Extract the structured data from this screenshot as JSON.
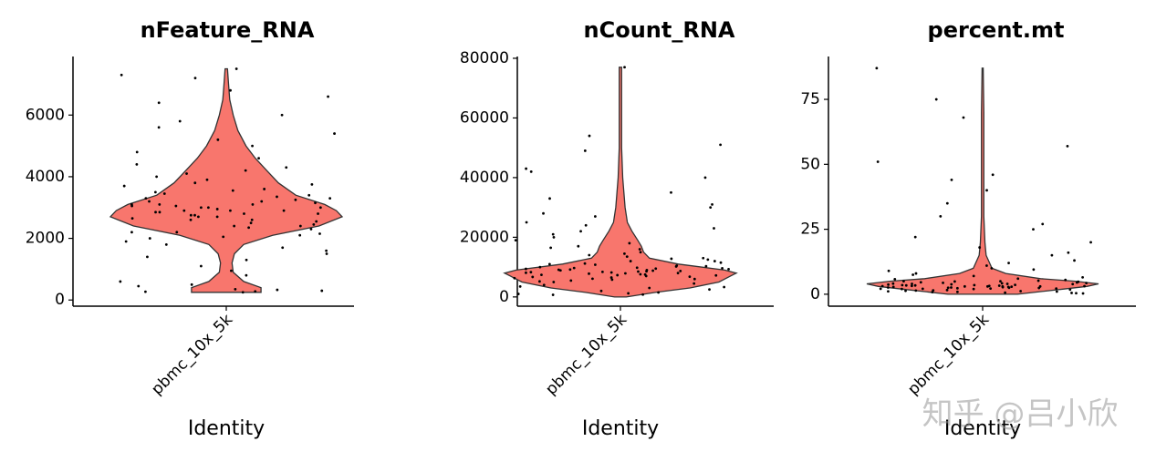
{
  "chart_data": [
    {
      "type": "violin",
      "title": "nFeature_RNA",
      "x_label": "Identity",
      "categories": [
        "pbmc_10x_5k"
      ],
      "color": "#f8766d",
      "ylim": [
        -200,
        7900
      ],
      "yticks": [
        0,
        2000,
        4000,
        6000
      ],
      "violin": {
        "y": [
          250,
          400,
          600,
          900,
          1200,
          1500,
          1800,
          2100,
          2400,
          2700,
          2900,
          3100,
          3400,
          3800,
          4200,
          4600,
          5000,
          5500,
          6000,
          6500,
          7000,
          7500
        ],
        "width": [
          0.3,
          0.3,
          0.15,
          0.06,
          0.05,
          0.07,
          0.15,
          0.4,
          0.8,
          1.0,
          0.95,
          0.85,
          0.6,
          0.45,
          0.35,
          0.25,
          0.17,
          0.1,
          0.06,
          0.03,
          0.02,
          0.01
        ]
      },
      "values": [
        2900,
        3100,
        2500,
        3300,
        2700,
        2800,
        3500,
        2200,
        3000,
        2600,
        3200,
        2400,
        3800,
        2100,
        2950,
        3050,
        4200,
        1900,
        2750,
        3400,
        2850,
        3150,
        4600,
        1700,
        2650,
        3600,
        300,
        250,
        350,
        280,
        5000,
        1500,
        2550,
        3700,
        3250,
        2450,
        4100,
        2000,
        5400,
        1300,
        3350,
        2350,
        6000,
        800,
        2900,
        3100,
        4400,
        1100,
        2300,
        3900,
        5800,
        600,
        7300,
        7500,
        6800,
        7200,
        2750,
        3050,
        4800,
        1600,
        2200,
        3450,
        3550,
        2050,
        500,
        450,
        3000,
        2800,
        5200,
        1800,
        4000,
        3300,
        2600,
        6400,
        950,
        3100,
        2900,
        2700,
        3200,
        4300,
        5600,
        2400,
        3750,
        2150,
        1400,
        6600,
        330,
        270,
        2850,
        3000
      ]
    },
    {
      "type": "violin",
      "title": "nCount_RNA",
      "x_label": "Identity",
      "categories": [
        "pbmc_10x_5k"
      ],
      "color": "#f8766d",
      "ylim": [
        -3100,
        80600
      ],
      "yticks": [
        0,
        20000,
        40000,
        60000,
        80000
      ],
      "violin": {
        "y": [
          0,
          1500,
          3000,
          5000,
          7000,
          8000,
          9000,
          11000,
          13000,
          15000,
          17000,
          19000,
          22000,
          25000,
          30000,
          35000,
          40000,
          50000,
          60000,
          70000,
          77000
        ],
        "width": [
          0.05,
          0.3,
          0.6,
          0.85,
          0.95,
          1.0,
          0.9,
          0.5,
          0.25,
          0.2,
          0.18,
          0.15,
          0.1,
          0.06,
          0.04,
          0.03,
          0.02,
          0.01,
          0.01,
          0.01,
          0.01
        ]
      },
      "values": [
        8000,
        9000,
        7500,
        10000,
        6500,
        8500,
        11000,
        5500,
        12000,
        7000,
        9500,
        6000,
        14000,
        4500,
        8200,
        9200,
        16000,
        3500,
        7800,
        13000,
        20000,
        2500,
        8800,
        10500,
        25000,
        1500,
        7200,
        9800,
        18000,
        3000,
        8600,
        11500,
        30000,
        1000,
        6800,
        12500,
        22000,
        4000,
        9300,
        15000,
        35000,
        800,
        10200,
        7600,
        17000,
        5000,
        8300,
        27000,
        40000,
        2000,
        9700,
        6300,
        19000,
        12000,
        77000,
        54000,
        49000,
        43000,
        42000,
        51000,
        8100,
        9100,
        13500,
        7300,
        24000,
        6700,
        10800,
        31000,
        5800,
        8900,
        16500,
        3300,
        11200,
        21000,
        7900,
        9400,
        14500,
        6100,
        28000,
        8700,
        700,
        1200,
        10300,
        23000,
        7400,
        9600,
        12800,
        5200,
        33000,
        8400
      ]
    },
    {
      "type": "violin",
      "title": "percent.mt",
      "x_label": "Identity",
      "categories": [
        "pbmc_10x_5k"
      ],
      "color": "#f8766d",
      "ylim": [
        -4.6,
        91.5
      ],
      "yticks": [
        0,
        25,
        50,
        75
      ],
      "violin": {
        "y": [
          0,
          1,
          2,
          3,
          4,
          5,
          6,
          8,
          10,
          15,
          20,
          30,
          50,
          70,
          87
        ],
        "width": [
          0.3,
          0.5,
          0.7,
          0.9,
          1.0,
          0.8,
          0.5,
          0.2,
          0.08,
          0.03,
          0.02,
          0.01,
          0.01,
          0.01,
          0.005
        ]
      },
      "values": [
        3,
        2.5,
        4,
        3.5,
        2,
        5,
        3.2,
        1.5,
        4.5,
        2.8,
        6,
        1,
        3.8,
        2.2,
        7,
        0.8,
        4.2,
        3.1,
        2.6,
        5.5,
        8,
        0.5,
        3.6,
        2.4,
        9,
        1.2,
        4.8,
        3.3,
        10,
        2.9,
        12,
        0.3,
        3.9,
        2.1,
        15,
        1.8,
        4.4,
        3.4,
        20,
        2.7,
        25,
        0.6,
        5.2,
        3,
        30,
        1.4,
        4.1,
        2.3,
        57,
        68,
        75,
        87,
        51,
        46,
        40,
        44,
        35,
        3.7,
        2.8,
        6.5,
        1.1,
        4.6,
        3.2,
        18,
        2.5,
        5.8,
        0.9,
        13,
        3.5,
        2.1,
        7.5,
        4.3,
        1.6,
        22,
        3,
        2.6,
        11,
        4.9,
        1.3,
        27,
        3.4,
        2.2,
        16,
        0.4,
        5,
        3.1,
        9.5,
        2,
        4,
        3
      ]
    }
  ],
  "watermark": "知乎 @吕小欣"
}
